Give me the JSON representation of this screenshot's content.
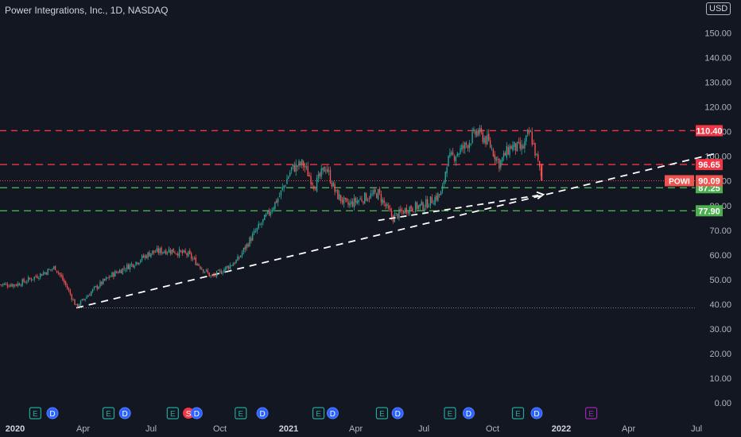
{
  "header": {
    "title": "Power Integrations, Inc., 1D, NASDAQ",
    "currency": "USD"
  },
  "colors": {
    "background": "#131722",
    "up": "#26a69a",
    "down": "#ef5350",
    "resistance": "#f23645",
    "support": "#4caf50",
    "trend": "#ffffff",
    "axis_text": "#b2b5be",
    "earnings_badge": "#26a69a",
    "dividend_badge": "#2962ff",
    "split_badge": "#f23645",
    "future_badge": "#9c27b0"
  },
  "chart_data": {
    "type": "candlestick",
    "title": "Power Integrations, Inc., 1D, NASDAQ",
    "ticker": "POWI",
    "y_axis": {
      "min": 0,
      "max": 155,
      "ticks": [
        "0.00",
        "10.00",
        "20.00",
        "30.00",
        "40.00",
        "50.00",
        "60.00",
        "70.00",
        "80.00",
        "90.00",
        "100.00",
        "110.00",
        "120.00",
        "130.00",
        "140.00",
        "150.00"
      ],
      "side": "right"
    },
    "x_axis": {
      "ticks": [
        "2020",
        "Apr",
        "Jul",
        "Oct",
        "2021",
        "Apr",
        "Jul",
        "Oct",
        "2022",
        "Apr",
        "Jul"
      ]
    },
    "price_path": [
      {
        "date": "2020-01-02",
        "price": 48
      },
      {
        "date": "2020-01-20",
        "price": 50
      },
      {
        "date": "2020-02-10",
        "price": 53
      },
      {
        "date": "2020-02-24",
        "price": 55
      },
      {
        "date": "2020-03-10",
        "price": 47
      },
      {
        "date": "2020-03-23",
        "price": 39
      },
      {
        "date": "2020-04-15",
        "price": 46
      },
      {
        "date": "2020-05-10",
        "price": 52
      },
      {
        "date": "2020-06-10",
        "price": 57
      },
      {
        "date": "2020-07-01",
        "price": 61
      },
      {
        "date": "2020-07-25",
        "price": 62
      },
      {
        "date": "2020-08-20",
        "price": 60
      },
      {
        "date": "2020-09-20",
        "price": 51
      },
      {
        "date": "2020-10-01",
        "price": 53
      },
      {
        "date": "2020-10-25",
        "price": 58
      },
      {
        "date": "2020-11-10",
        "price": 66
      },
      {
        "date": "2020-12-01",
        "price": 75
      },
      {
        "date": "2020-12-20",
        "price": 84
      },
      {
        "date": "2021-01-05",
        "price": 95
      },
      {
        "date": "2021-01-20",
        "price": 97
      },
      {
        "date": "2021-02-05",
        "price": 88
      },
      {
        "date": "2021-02-20",
        "price": 96
      },
      {
        "date": "2021-03-05",
        "price": 85
      },
      {
        "date": "2021-03-20",
        "price": 80
      },
      {
        "date": "2021-04-10",
        "price": 83
      },
      {
        "date": "2021-05-01",
        "price": 85
      },
      {
        "date": "2021-05-20",
        "price": 75
      },
      {
        "date": "2021-06-10",
        "price": 79
      },
      {
        "date": "2021-07-01",
        "price": 80
      },
      {
        "date": "2021-07-25",
        "price": 85
      },
      {
        "date": "2021-08-01",
        "price": 98
      },
      {
        "date": "2021-08-25",
        "price": 104
      },
      {
        "date": "2021-09-10",
        "price": 110
      },
      {
        "date": "2021-09-25",
        "price": 106
      },
      {
        "date": "2021-10-10",
        "price": 97
      },
      {
        "date": "2021-10-25",
        "price": 104
      },
      {
        "date": "2021-11-10",
        "price": 103
      },
      {
        "date": "2021-11-20",
        "price": 110
      },
      {
        "date": "2021-12-01",
        "price": 97
      },
      {
        "date": "2021-12-06",
        "price": 90.09
      }
    ],
    "last_price": {
      "label": "POWI",
      "value": 90.09
    },
    "horizontal_levels": [
      {
        "value": 110.4,
        "label": "110.40",
        "kind": "resistance"
      },
      {
        "value": 96.65,
        "label": "96.65",
        "kind": "resistance"
      },
      {
        "value": 87.25,
        "label": "87.25",
        "kind": "support"
      },
      {
        "value": 77.9,
        "label": "77.90",
        "kind": "support"
      }
    ],
    "trend_line": {
      "start": {
        "date": "2020-03-23",
        "price": 38.5
      },
      "end": {
        "date": "2022-07-25",
        "price": 101
      }
    },
    "projection_arrow": {
      "start": {
        "date": "2021-05-01",
        "price": 74
      },
      "end": {
        "date": "2021-12-08",
        "price": 84.5
      }
    },
    "low_reference_line": {
      "value": 38.5
    },
    "last_price_line": {
      "value": 90.09
    },
    "events": [
      {
        "date": "2020-01-28",
        "type": "E"
      },
      {
        "date": "2020-02-20",
        "type": "D"
      },
      {
        "date": "2020-05-05",
        "type": "E"
      },
      {
        "date": "2020-05-27",
        "type": "D"
      },
      {
        "date": "2020-07-30",
        "type": "E"
      },
      {
        "date": "2020-08-20",
        "type": "S"
      },
      {
        "date": "2020-08-31",
        "type": "D"
      },
      {
        "date": "2020-10-29",
        "type": "E"
      },
      {
        "date": "2020-11-27",
        "type": "D"
      },
      {
        "date": "2021-02-10",
        "type": "E"
      },
      {
        "date": "2021-03-01",
        "type": "D"
      },
      {
        "date": "2021-05-06",
        "type": "E"
      },
      {
        "date": "2021-05-27",
        "type": "D"
      },
      {
        "date": "2021-08-05",
        "type": "E"
      },
      {
        "date": "2021-08-30",
        "type": "D"
      },
      {
        "date": "2021-11-04",
        "type": "E"
      },
      {
        "date": "2021-11-29",
        "type": "D"
      },
      {
        "date": "2022-02-10",
        "type": "E",
        "future": true
      }
    ]
  }
}
